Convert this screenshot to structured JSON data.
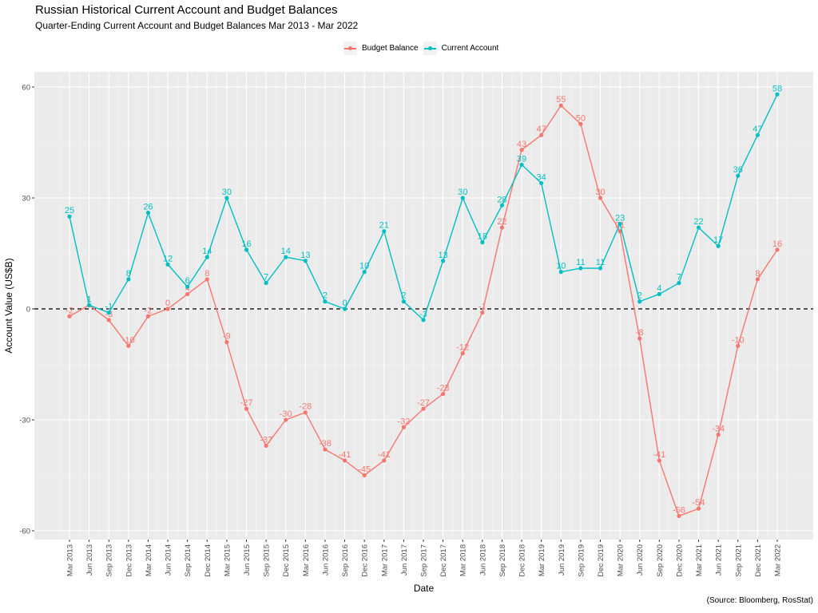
{
  "chart_data": {
    "type": "line",
    "title": "Russian Historical Current Account and Budget Balances",
    "subtitle": "Quarter-Ending Current Account and Budget Balances Mar 2013 - Mar 2022",
    "caption": "(Source: Bloomberg, RosStat)",
    "xlabel": "Date",
    "ylabel": "Account Value (US$B)",
    "ylim": [
      -62,
      62
    ],
    "yticks": [
      -60,
      -30,
      0,
      30,
      60
    ],
    "grid": true,
    "reference_line": {
      "y": 0,
      "style": "dashed",
      "color": "#000000"
    },
    "legend_position": "top",
    "x": [
      "Mar 2013",
      "Jun 2013",
      "Sep 2013",
      "Dec 2013",
      "Mar 2014",
      "Jun 2014",
      "Sep 2014",
      "Dec 2014",
      "Mar 2015",
      "Jun 2015",
      "Sep 2015",
      "Dec 2015",
      "Mar 2016",
      "Jun 2016",
      "Sep 2016",
      "Dec 2016",
      "Mar 2017",
      "Jun 2017",
      "Sep 2017",
      "Dec 2017",
      "Mar 2018",
      "Jun 2018",
      "Sep 2018",
      "Dec 2018",
      "Mar 2019",
      "Jun 2019",
      "Sep 2019",
      "Dec 2019",
      "Mar 2020",
      "Jun 2020",
      "Sep 2020",
      "Dec 2020",
      "Mar 2021",
      "Jun 2021",
      "Sep 2021",
      "Dec 2021",
      "Mar 2022"
    ],
    "series": [
      {
        "name": "Budget Balance",
        "color": "#F8766D",
        "values": [
          -2,
          1,
          -3,
          -10,
          -2,
          0,
          4,
          8,
          -9,
          -27,
          -37,
          -30,
          -28,
          -38,
          -41,
          -45,
          -41,
          -32,
          -27,
          -23,
          -12,
          -1,
          22,
          43,
          47,
          55,
          50,
          30,
          21,
          -8,
          -41,
          -56,
          -54,
          -34,
          -10,
          8,
          16
        ]
      },
      {
        "name": "Current Account",
        "color": "#00BFC4",
        "values": [
          25,
          1,
          -1,
          8,
          26,
          12,
          6,
          14,
          30,
          16,
          7,
          14,
          13,
          2,
          0,
          10,
          21,
          2,
          -3,
          13,
          30,
          18,
          28,
          39,
          34,
          10,
          11,
          11,
          23,
          2,
          4,
          7,
          22,
          17,
          36,
          47,
          58
        ]
      }
    ]
  }
}
